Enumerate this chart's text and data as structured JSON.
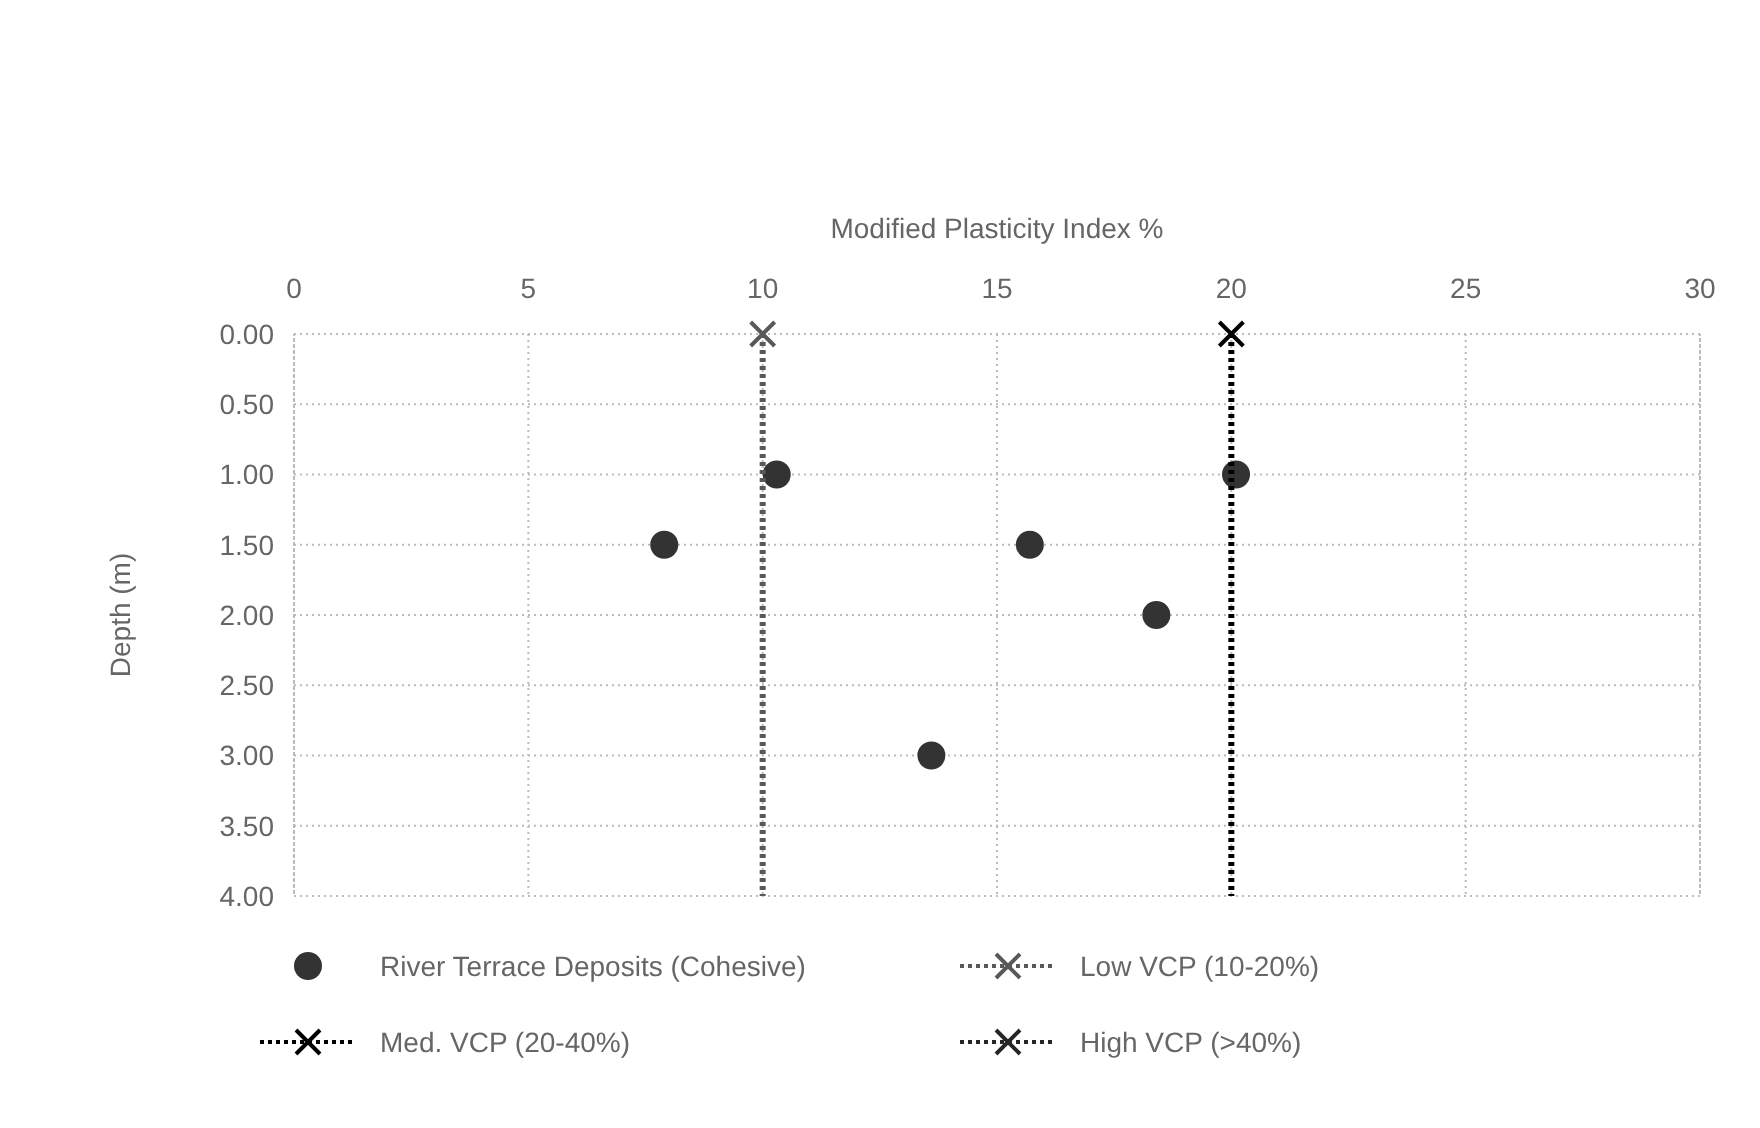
{
  "chart_data": {
    "type": "scatter",
    "xlabel": "Modified Plasticity Index %",
    "ylabel": "Depth (m)",
    "xlim": [
      0,
      30
    ],
    "xticks": [
      0,
      5,
      10,
      15,
      20,
      25,
      30
    ],
    "ylim": [
      4,
      0
    ],
    "yticks": [
      {
        "value": 0,
        "label": "0.00"
      },
      {
        "value": 0.5,
        "label": "0.50"
      },
      {
        "value": 1,
        "label": "1.00"
      },
      {
        "value": 1.5,
        "label": "1.50"
      },
      {
        "value": 2,
        "label": "2.00"
      },
      {
        "value": 2.5,
        "label": "2.50"
      },
      {
        "value": 3,
        "label": "3.00"
      },
      {
        "value": 3.5,
        "label": "3.50"
      },
      {
        "value": 4,
        "label": "4.00"
      }
    ],
    "grid": true,
    "legend": "bottom",
    "series": [
      {
        "name": "River Terrace Deposits (Cohesive)",
        "marker": "circle",
        "color": "#333333",
        "x": [
          10.3,
          20.1,
          7.9,
          15.7,
          18.4,
          13.6
        ],
        "values": [
          1,
          1,
          1.5,
          1.5,
          2,
          3
        ]
      },
      {
        "name": "Low VCP (10-20%)",
        "type": "line",
        "marker": "cross",
        "line_style": "dotted",
        "color": "#595959",
        "x": [
          10,
          10
        ],
        "values": [
          0,
          4
        ]
      },
      {
        "name": "Med. VCP (20-40%)",
        "type": "line",
        "marker": "cross",
        "line_style": "dotted",
        "color": "#000000",
        "x": [
          20,
          20
        ],
        "values": [
          0,
          4
        ]
      },
      {
        "name": "High VCP (>40%)",
        "type": "line",
        "marker": "cross",
        "line_style": "dotted",
        "color": "#262626",
        "x": [
          null,
          null
        ],
        "values": [
          null,
          null
        ]
      }
    ]
  }
}
